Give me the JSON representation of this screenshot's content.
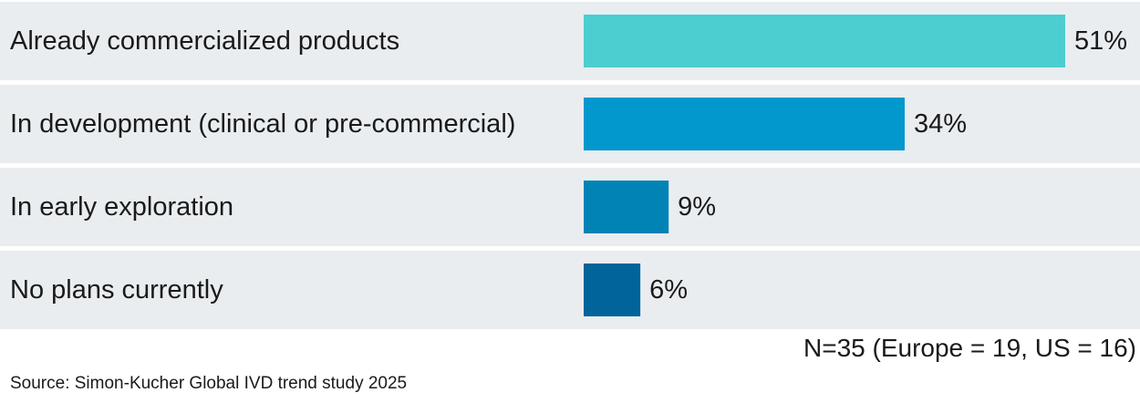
{
  "chart_data": {
    "type": "bar",
    "orientation": "horizontal",
    "categories": [
      "Already commercialized products",
      "In development (clinical or pre-commercial)",
      "In early exploration",
      "No plans currently"
    ],
    "values": [
      51,
      34,
      9,
      6
    ],
    "value_labels": [
      "51%",
      "34%",
      "9%",
      "6%"
    ],
    "colors": [
      "#4ccdd0",
      "#0398cd",
      "#0283b5",
      "#01649a"
    ],
    "unit": "%",
    "xlim": [
      0,
      100
    ],
    "title": "",
    "xlabel": "",
    "ylabel": "",
    "grid": false,
    "legend": "none"
  },
  "sample_note": "N=35 (Europe = 19, US = 16)",
  "source": "Source: Simon-Kucher Global IVD trend study 2025"
}
